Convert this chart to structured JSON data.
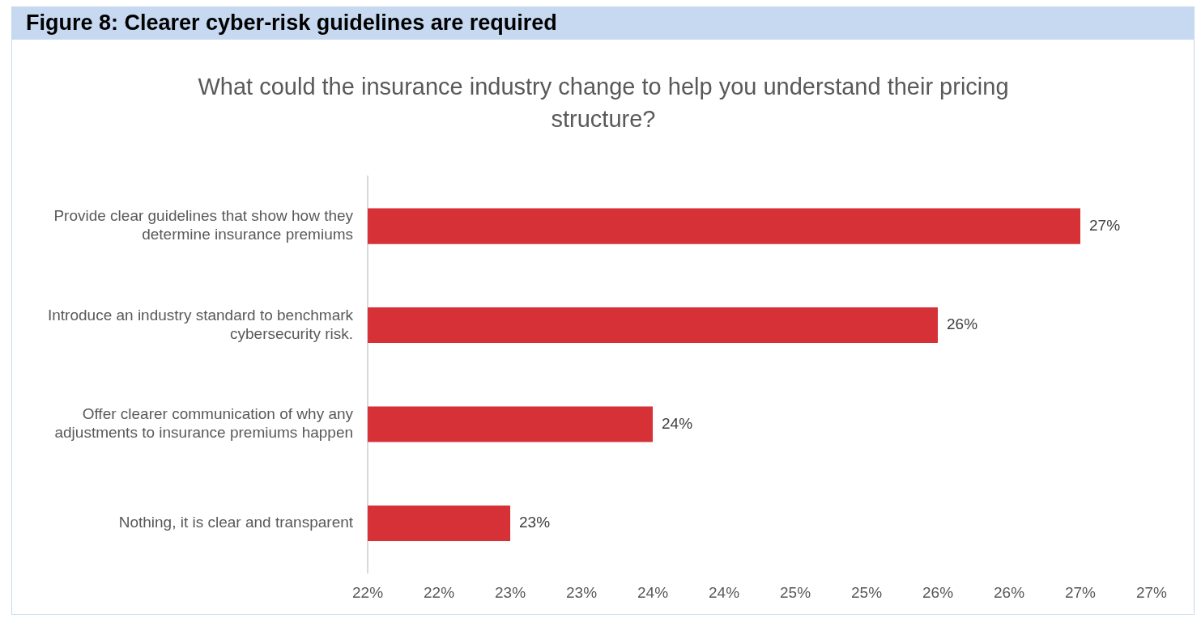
{
  "chart_data": {
    "type": "bar",
    "orientation": "horizontal",
    "title": "Figure 8: Clearer cyber-risk guidelines are required",
    "subtitle": "What could the insurance industry change to help you understand their pricing structure?",
    "categories": [
      "Provide clear guidelines that show how they determine insurance premiums",
      "Introduce an industry standard to benchmark cybersecurity risk.",
      "Offer clearer communication of why any adjustments to insurance premiums happen",
      "Nothing, it is clear and transparent"
    ],
    "values": [
      27,
      26,
      24,
      23
    ],
    "value_labels": [
      "27%",
      "26%",
      "24%",
      "23%"
    ],
    "color": "#d53136",
    "xlim": [
      22,
      27.5
    ],
    "xticks": [
      {
        "value": 22,
        "label": "22%"
      },
      {
        "value": 22.5,
        "label": "22%"
      },
      {
        "value": 23,
        "label": "23%"
      },
      {
        "value": 23.5,
        "label": "23%"
      },
      {
        "value": 24,
        "label": "24%"
      },
      {
        "value": 24.5,
        "label": "24%"
      },
      {
        "value": 25,
        "label": "25%"
      },
      {
        "value": 25.5,
        "label": "25%"
      },
      {
        "value": 26,
        "label": "26%"
      },
      {
        "value": 26.5,
        "label": "26%"
      },
      {
        "value": 27,
        "label": "27%"
      },
      {
        "value": 27.5,
        "label": "27%"
      }
    ],
    "grid": false,
    "legend": false
  }
}
